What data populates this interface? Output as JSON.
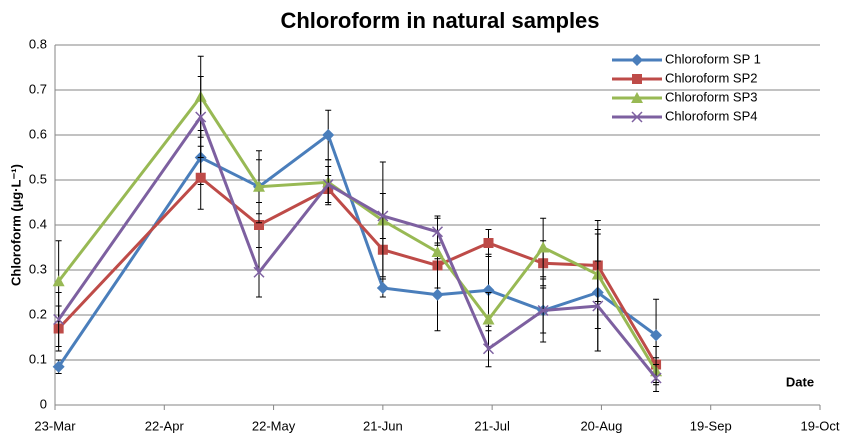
{
  "chart_data": {
    "type": "line",
    "title": "Chloroform in natural samples",
    "y_label": "Chloroform (µg·L⁻¹)",
    "annotation": "Date",
    "x": [
      83,
      122,
      138,
      157,
      172,
      187,
      201,
      216,
      231,
      247
    ],
    "xlim": [
      82,
      292
    ],
    "xticks": [
      {
        "value": 82,
        "label": "23-Mar"
      },
      {
        "value": 112,
        "label": "22-Apr"
      },
      {
        "value": 142,
        "label": "22-May"
      },
      {
        "value": 172,
        "label": "21-Jun"
      },
      {
        "value": 202,
        "label": "21-Jul"
      },
      {
        "value": 232,
        "label": "20-Aug"
      },
      {
        "value": 262,
        "label": "19-Sep"
      },
      {
        "value": 292,
        "label": "19-Oct"
      }
    ],
    "ylim": [
      0,
      0.8
    ],
    "yticks": [
      0,
      0.1,
      0.2,
      0.3,
      0.4,
      0.5,
      0.6,
      0.7,
      0.8
    ],
    "grid": true,
    "legend": "top-right",
    "series": [
      {
        "name": "Chloroform SP 1",
        "color": "#4a7ebb",
        "marker": "diamond",
        "values": [
          0.085,
          0.55,
          0.485,
          0.6,
          0.26,
          0.245,
          0.255,
          0.21,
          0.25,
          0.155
        ],
        "errors": [
          0.015,
          0.06,
          0.06,
          0.055,
          0.02,
          0.08,
          0.08,
          0.05,
          0.13,
          0.08
        ]
      },
      {
        "name": "Chloroform SP2",
        "color": "#be4b48",
        "marker": "square",
        "values": [
          0.17,
          0.505,
          0.4,
          0.48,
          0.345,
          0.31,
          0.36,
          0.315,
          0.31,
          0.09
        ],
        "errors": [
          0.05,
          0.07,
          0.05,
          0.03,
          0.06,
          0.05,
          0.03,
          0.05,
          0.08,
          0.04
        ]
      },
      {
        "name": "Chloroform SP3",
        "color": "#98b954",
        "marker": "triangle",
        "values": [
          0.275,
          0.685,
          0.485,
          0.495,
          0.41,
          0.34,
          0.19,
          0.35,
          0.29,
          0.075
        ],
        "errors": [
          0.09,
          0.09,
          0.08,
          0.05,
          0.13,
          0.08,
          0.06,
          0.065,
          0.12,
          0.03
        ]
      },
      {
        "name": "Chloroform SP4",
        "color": "#7d60a0",
        "marker": "x",
        "values": [
          0.19,
          0.64,
          0.295,
          0.49,
          0.42,
          0.385,
          0.125,
          0.21,
          0.22,
          0.06
        ],
        "errors": [
          0.06,
          0.09,
          0.055,
          0.04,
          0.05,
          0.03,
          0.04,
          0.07,
          0.1,
          0.03
        ]
      }
    ]
  }
}
